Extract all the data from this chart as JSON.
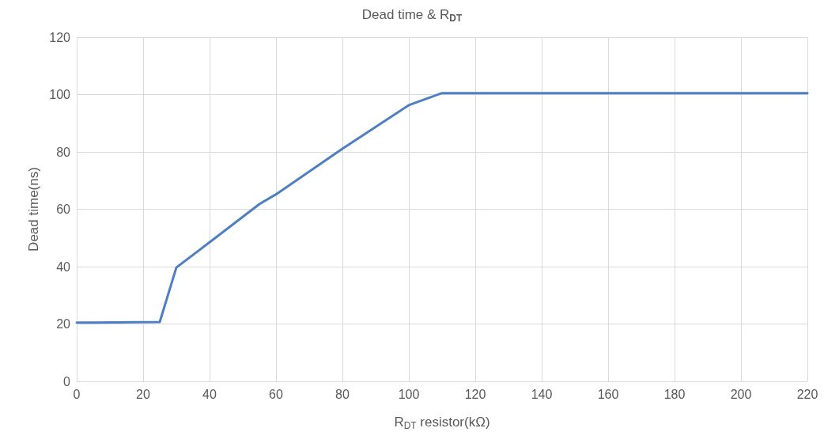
{
  "chart_data": {
    "type": "line",
    "title": "Dead time & R$_{DT}$",
    "xlabel": "R$_{DT}$ resistor(kΩ)",
    "ylabel": "Dead time(ns)",
    "x": [
      0,
      5,
      25,
      30,
      40,
      55,
      60,
      80,
      100,
      110,
      220
    ],
    "series": [
      {
        "color": "#4e7fc0",
        "values": [
          20.5,
          20.5,
          20.7,
          39.7,
          48.5,
          61.8,
          65.2,
          81.1,
          96.3,
          100.5,
          100.5
        ]
      }
    ],
    "xlim": [
      0,
      220
    ],
    "xticks": [
      0,
      20,
      40,
      60,
      80,
      100,
      120,
      140,
      160,
      180,
      200,
      220
    ],
    "ylim": [
      0,
      120
    ],
    "yticks": [
      0,
      20,
      40,
      60,
      80,
      100,
      120
    ],
    "grid": true,
    "marker": "none",
    "line_style": "solid"
  }
}
